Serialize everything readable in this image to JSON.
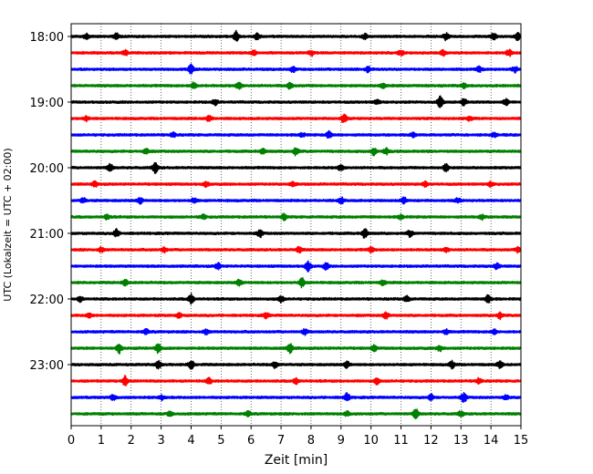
{
  "chart_data": {
    "type": "line",
    "title": "",
    "xlabel": "Zeit  [min]",
    "ylabel": "UTC (Lokalzeit = UTC + 02:00)",
    "xlim": [
      0,
      15
    ],
    "x_ticks": [
      "0",
      "1",
      "2",
      "3",
      "4",
      "5",
      "6",
      "7",
      "8",
      "9",
      "10",
      "11",
      "12",
      "13",
      "14",
      "15"
    ],
    "y_tick_labels": [
      "18:00",
      "19:00",
      "20:00",
      "21:00",
      "22:00",
      "23:00"
    ],
    "grid": "vertical dotted lines at each minute",
    "legend": "none",
    "trace_interval_minutes": 15,
    "trace_start_times": [
      "18:00",
      "18:15",
      "18:30",
      "18:45",
      "19:00",
      "19:15",
      "19:30",
      "19:45",
      "20:00",
      "20:15",
      "20:30",
      "20:45",
      "21:00",
      "21:15",
      "21:30",
      "21:45",
      "22:00",
      "22:15",
      "22:30",
      "22:45",
      "23:00",
      "23:15",
      "23:30",
      "23:45"
    ],
    "color_cycle": [
      "#000000",
      "#ff0000",
      "#0000ff",
      "#008000"
    ],
    "bursts": [
      [
        [
          0.5,
          0.7
        ],
        [
          1.5,
          0.8
        ],
        [
          5.5,
          1.3
        ],
        [
          6.2,
          0.8
        ],
        [
          9.8,
          0.6
        ],
        [
          12.5,
          0.9
        ],
        [
          14.1,
          0.9
        ],
        [
          14.9,
          1.0
        ]
      ],
      [
        [
          1.8,
          0.7
        ],
        [
          6.1,
          0.6
        ],
        [
          8.0,
          0.7
        ],
        [
          11.0,
          0.6
        ],
        [
          12.4,
          0.6
        ],
        [
          14.6,
          0.8
        ]
      ],
      [
        [
          4.0,
          1.2
        ],
        [
          7.4,
          0.7
        ],
        [
          9.9,
          0.7
        ],
        [
          13.6,
          0.7
        ],
        [
          14.8,
          0.7
        ]
      ],
      [
        [
          4.1,
          0.9
        ],
        [
          5.6,
          1.0
        ],
        [
          7.3,
          0.8
        ],
        [
          10.4,
          0.6
        ],
        [
          13.1,
          0.6
        ]
      ],
      [
        [
          4.8,
          0.7
        ],
        [
          10.2,
          0.6
        ],
        [
          12.3,
          1.6
        ],
        [
          13.1,
          0.8
        ],
        [
          14.5,
          0.8
        ]
      ],
      [
        [
          0.5,
          0.6
        ],
        [
          4.6,
          0.8
        ],
        [
          9.1,
          1.1
        ],
        [
          13.3,
          0.5
        ]
      ],
      [
        [
          3.4,
          0.6
        ],
        [
          7.7,
          0.6
        ],
        [
          8.6,
          0.9
        ],
        [
          11.4,
          0.5
        ],
        [
          14.1,
          0.5
        ]
      ],
      [
        [
          2.5,
          0.7
        ],
        [
          6.4,
          0.7
        ],
        [
          7.5,
          1.0
        ],
        [
          10.1,
          1.0
        ],
        [
          10.5,
          0.7
        ]
      ],
      [
        [
          1.3,
          1.0
        ],
        [
          2.8,
          1.4
        ],
        [
          9.0,
          0.8
        ],
        [
          12.5,
          0.9
        ]
      ],
      [
        [
          0.8,
          0.6
        ],
        [
          4.5,
          0.6
        ],
        [
          7.4,
          0.6
        ],
        [
          11.8,
          0.6
        ],
        [
          14.0,
          0.6
        ]
      ],
      [
        [
          0.4,
          0.6
        ],
        [
          2.3,
          0.7
        ],
        [
          4.1,
          0.6
        ],
        [
          9.0,
          0.8
        ],
        [
          11.1,
          0.8
        ],
        [
          12.9,
          0.6
        ]
      ],
      [
        [
          1.2,
          0.6
        ],
        [
          4.4,
          0.6
        ],
        [
          7.1,
          0.7
        ],
        [
          11.0,
          0.6
        ],
        [
          13.7,
          0.6
        ]
      ],
      [
        [
          1.5,
          1.0
        ],
        [
          6.3,
          0.9
        ],
        [
          9.8,
          1.3
        ],
        [
          11.3,
          0.8
        ]
      ],
      [
        [
          1.0,
          0.6
        ],
        [
          3.1,
          0.6
        ],
        [
          7.6,
          0.7
        ],
        [
          10.0,
          0.6
        ],
        [
          12.5,
          0.6
        ],
        [
          14.9,
          0.6
        ]
      ],
      [
        [
          4.9,
          0.8
        ],
        [
          7.9,
          1.3
        ],
        [
          8.5,
          0.8
        ],
        [
          14.2,
          0.7
        ]
      ],
      [
        [
          1.8,
          0.7
        ],
        [
          5.6,
          0.7
        ],
        [
          7.7,
          1.1
        ],
        [
          10.4,
          0.6
        ]
      ],
      [
        [
          0.3,
          0.6
        ],
        [
          4.0,
          1.2
        ],
        [
          7.0,
          0.8
        ],
        [
          11.2,
          0.8
        ],
        [
          13.9,
          1.1
        ]
      ],
      [
        [
          0.6,
          0.6
        ],
        [
          3.6,
          0.6
        ],
        [
          6.5,
          0.6
        ],
        [
          10.5,
          0.8
        ],
        [
          14.3,
          0.8
        ]
      ],
      [
        [
          2.5,
          0.6
        ],
        [
          4.5,
          0.6
        ],
        [
          7.8,
          0.7
        ],
        [
          12.5,
          0.6
        ],
        [
          14.1,
          0.6
        ]
      ],
      [
        [
          1.6,
          1.2
        ],
        [
          2.9,
          1.2
        ],
        [
          7.3,
          1.2
        ],
        [
          10.1,
          0.7
        ],
        [
          12.3,
          0.7
        ]
      ],
      [
        [
          2.9,
          1.0
        ],
        [
          4.0,
          1.2
        ],
        [
          6.8,
          0.8
        ],
        [
          9.2,
          0.8
        ],
        [
          12.7,
          0.9
        ],
        [
          14.3,
          0.8
        ]
      ],
      [
        [
          1.8,
          1.2
        ],
        [
          4.6,
          0.7
        ],
        [
          7.5,
          0.7
        ],
        [
          10.2,
          0.7
        ],
        [
          13.6,
          0.7
        ]
      ],
      [
        [
          1.4,
          0.7
        ],
        [
          3.0,
          0.6
        ],
        [
          9.2,
          1.0
        ],
        [
          12.0,
          0.7
        ],
        [
          13.1,
          1.2
        ],
        [
          14.5,
          0.6
        ]
      ],
      [
        [
          3.3,
          0.6
        ],
        [
          5.9,
          0.6
        ],
        [
          9.2,
          0.5
        ],
        [
          11.5,
          1.3
        ],
        [
          13.0,
          0.7
        ]
      ]
    ]
  }
}
